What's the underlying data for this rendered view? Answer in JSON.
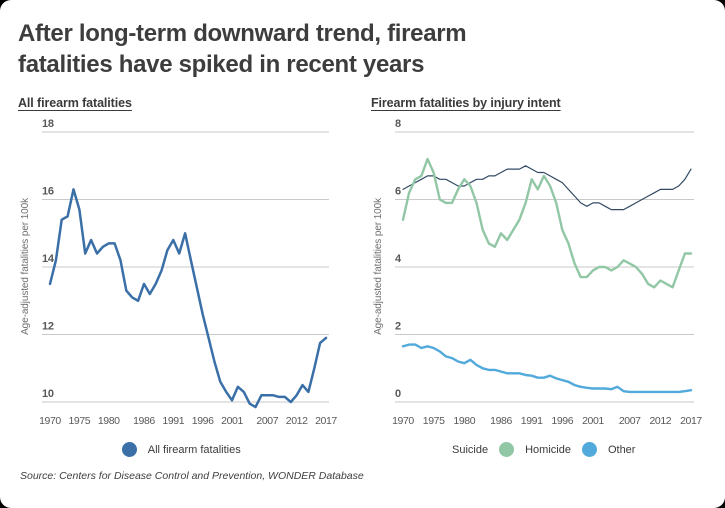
{
  "page": {
    "background_color": "#000000",
    "card_color": "#FFFFFF"
  },
  "header": {
    "title_line1": "After long-term downward trend, firearm",
    "title_line2": "fatalities have spiked in recent years"
  },
  "chart_data": [
    {
      "type": "line",
      "target": "plot-all-fatalities",
      "title": "All firearm fatalities",
      "ylabel": "Age-adjusted fatalities per 100k",
      "xlabel": "",
      "grid": true,
      "legend_position": "bottom",
      "ylim": [
        10,
        18
      ],
      "y_ticks": [
        10,
        12,
        14,
        16,
        18
      ],
      "x_tick_labels": [
        "1970",
        "1975",
        "1980",
        "1986",
        "1991",
        "1996",
        "2001",
        "2007",
        "2012",
        "2017"
      ],
      "x": [
        1970,
        1971,
        1972,
        1973,
        1974,
        1975,
        1976,
        1977,
        1978,
        1979,
        1980,
        1981,
        1982,
        1983,
        1984,
        1985,
        1986,
        1987,
        1988,
        1989,
        1990,
        1991,
        1992,
        1993,
        1994,
        1995,
        1996,
        1997,
        1998,
        1999,
        2000,
        2001,
        2002,
        2003,
        2004,
        2005,
        2006,
        2007,
        2008,
        2009,
        2010,
        2011,
        2012,
        2013,
        2014,
        2015,
        2016,
        2017
      ],
      "series": [
        {
          "name": "All firearm fatalities",
          "color": "#3A6FA7",
          "line_width": 2.5,
          "opacity": 1,
          "values": [
            13.5,
            14.2,
            15.4,
            15.5,
            16.3,
            15.7,
            14.4,
            14.8,
            14.4,
            14.6,
            14.7,
            14.7,
            14.2,
            13.3,
            13.1,
            13.0,
            13.5,
            13.2,
            13.5,
            13.9,
            14.5,
            14.8,
            14.4,
            15.0,
            14.2,
            13.4,
            12.6,
            11.9,
            11.2,
            10.6,
            10.3,
            10.05,
            10.45,
            10.3,
            9.95,
            9.85,
            10.2,
            10.2,
            10.2,
            10.15,
            10.15,
            10.0,
            10.2,
            10.5,
            10.3,
            11.0,
            11.75,
            11.9
          ]
        }
      ]
    },
    {
      "type": "line",
      "target": "plot-injury-intent",
      "title": "Firearm fatalities by injury intent",
      "ylabel": "Age-adjusted fatalities per 100k",
      "xlabel": "",
      "grid": true,
      "legend_position": "bottom",
      "ylim": [
        0,
        8
      ],
      "y_ticks": [
        0,
        2,
        4,
        6,
        8
      ],
      "x_tick_labels": [
        "1970",
        "1975",
        "1980",
        "1986",
        "1991",
        "1996",
        "2001",
        "2007",
        "2012",
        "2017"
      ],
      "x": [
        1970,
        1971,
        1972,
        1973,
        1974,
        1975,
        1976,
        1977,
        1978,
        1979,
        1980,
        1981,
        1982,
        1983,
        1984,
        1985,
        1986,
        1987,
        1988,
        1989,
        1990,
        1991,
        1992,
        1993,
        1994,
        1995,
        1996,
        1997,
        1998,
        1999,
        2000,
        2001,
        2002,
        2003,
        2004,
        2005,
        2006,
        2007,
        2008,
        2009,
        2010,
        2011,
        2012,
        2013,
        2014,
        2015,
        2016,
        2017
      ],
      "series": [
        {
          "name": "Suicide",
          "color": "#27405C",
          "line_width": 1.2,
          "opacity": 0.95,
          "values": [
            6.3,
            6.4,
            6.5,
            6.6,
            6.7,
            6.7,
            6.6,
            6.6,
            6.5,
            6.4,
            6.4,
            6.5,
            6.6,
            6.6,
            6.7,
            6.7,
            6.8,
            6.9,
            6.9,
            6.9,
            7.0,
            6.9,
            6.8,
            6.8,
            6.7,
            6.6,
            6.5,
            6.3,
            6.1,
            5.9,
            5.8,
            5.9,
            5.9,
            5.8,
            5.7,
            5.7,
            5.7,
            5.8,
            5.9,
            6.0,
            6.1,
            6.2,
            6.3,
            6.3,
            6.3,
            6.4,
            6.6,
            6.9
          ]
        },
        {
          "name": "Homicide",
          "color": "#92C7A6",
          "line_width": 2.4,
          "opacity": 1,
          "values": [
            5.4,
            6.2,
            6.6,
            6.7,
            7.2,
            6.8,
            6.0,
            5.9,
            5.9,
            6.3,
            6.6,
            6.4,
            5.9,
            5.1,
            4.7,
            4.6,
            5.0,
            4.8,
            5.1,
            5.4,
            5.9,
            6.6,
            6.3,
            6.7,
            6.4,
            5.9,
            5.1,
            4.7,
            4.1,
            3.7,
            3.7,
            3.9,
            4.0,
            4.0,
            3.9,
            4.0,
            4.2,
            4.1,
            4.0,
            3.8,
            3.5,
            3.4,
            3.6,
            3.5,
            3.4,
            3.9,
            4.4,
            4.4
          ]
        },
        {
          "name": "Other",
          "color": "#52A9DB",
          "line_width": 2.4,
          "opacity": 1,
          "values": [
            1.65,
            1.7,
            1.7,
            1.6,
            1.65,
            1.6,
            1.5,
            1.35,
            1.3,
            1.2,
            1.15,
            1.25,
            1.1,
            1.0,
            0.95,
            0.95,
            0.9,
            0.85,
            0.85,
            0.85,
            0.8,
            0.78,
            0.72,
            0.72,
            0.78,
            0.7,
            0.65,
            0.6,
            0.5,
            0.45,
            0.42,
            0.4,
            0.4,
            0.4,
            0.38,
            0.45,
            0.32,
            0.3,
            0.3,
            0.3,
            0.3,
            0.3,
            0.3,
            0.3,
            0.3,
            0.3,
            0.32,
            0.35
          ]
        }
      ]
    }
  ],
  "legend": {
    "all": {
      "label": "All firearm fatalities",
      "color": "#3A6FA7"
    },
    "intent_items": [
      {
        "label": "Suicide",
        "dot_after_color": "#92C7A6"
      },
      {
        "label": "Homicide",
        "dot_after_color": "#52A9DB"
      },
      {
        "label": "Other",
        "dot_after_color": null
      }
    ]
  },
  "source": {
    "text": "Source: Centers for Disease Control and Prevention, WONDER Database"
  },
  "style": {
    "gridline_color": "#C9C9C9",
    "tick_label_color": "#585858",
    "title_color": "#3D3D3D"
  }
}
